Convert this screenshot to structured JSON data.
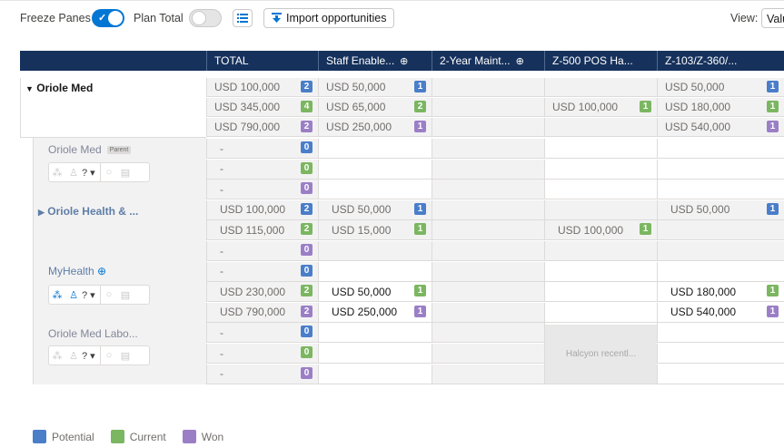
{
  "toolbar": {
    "freeze_panes_label": "Freeze Panes",
    "freeze_panes_on": true,
    "plan_total_label": "Plan Total",
    "plan_total_on": false,
    "import_label": "Import opportunities",
    "view_label": "View:",
    "view_value": "Valu"
  },
  "columns": [
    "TOTAL",
    "Staff Enable...",
    "2-Year Maint...",
    "Z-500 POS Ha...",
    "Z-103/Z-360/..."
  ],
  "accounts": {
    "a1": "Oriole Med",
    "a2": "Oriole Med",
    "a2_tag": "Parent",
    "a3": "Oriole Health & ...",
    "a4": "MyHealth",
    "a5": "Oriole Med Labo..."
  },
  "rows": [
    {
      "total": "USD 100,000",
      "tb": "2",
      "c1": "USD 50,000",
      "c1b": "1",
      "c3": "",
      "c4": "USD 50,000",
      "c4b": "1"
    },
    {
      "total": "USD 345,000",
      "tb": "4",
      "c1": "USD 65,000",
      "c1b": "2",
      "c3": "USD 100,000",
      "c3b": "1",
      "c4": "USD 180,000",
      "c4b": "1"
    },
    {
      "total": "USD 790,000",
      "tb": "2",
      "c1": "USD 250,000",
      "c1b": "1",
      "c3": "",
      "c4": "USD 540,000",
      "c4b": "1"
    },
    {
      "total": "-",
      "tb": "0"
    },
    {
      "total": "-",
      "tb": "0"
    },
    {
      "total": "-",
      "tb": "0"
    },
    {
      "total": "USD 100,000",
      "tb": "2",
      "c1": "USD 50,000",
      "c1b": "1",
      "c4": "USD 50,000",
      "c4b": "1"
    },
    {
      "total": "USD 115,000",
      "tb": "2",
      "c1": "USD 15,000",
      "c1b": "1",
      "c3": "USD 100,000",
      "c3b": "1"
    },
    {
      "total": "-",
      "tb": "0"
    },
    {
      "total": "-",
      "tb": "0"
    },
    {
      "total": "USD 230,000",
      "tb": "2",
      "c1": "USD 50,000",
      "c1b": "1",
      "c4": "USD 180,000",
      "c4b": "1"
    },
    {
      "total": "USD 790,000",
      "tb": "2",
      "c1": "USD 250,000",
      "c1b": "1",
      "c4": "USD 540,000",
      "c4b": "1"
    },
    {
      "total": "-",
      "tb": "0"
    },
    {
      "total": "-",
      "tb": "0"
    },
    {
      "total": "-",
      "tb": "0"
    }
  ],
  "halcyon_text": "Halcyon recentl...",
  "action_question": "?",
  "legend": {
    "potential": "Potential",
    "current": "Current",
    "won": "Won"
  },
  "colors": {
    "header": "#16325c",
    "potential": "#4a7ec9",
    "current": "#7bb661",
    "won": "#9b7fc6",
    "toggle_on": "#0176d3"
  }
}
